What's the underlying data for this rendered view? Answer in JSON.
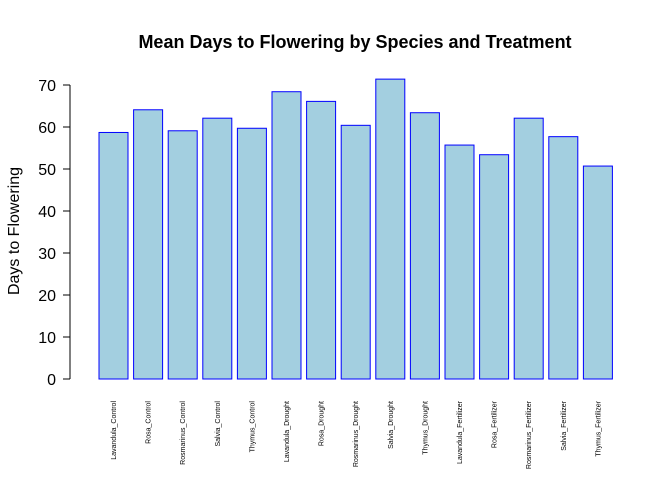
{
  "chart_data": {
    "type": "bar",
    "title": "Mean Days to Flowering by Species and Treatment",
    "xlabel": "",
    "ylabel": "Days to Flowering",
    "ylim": [
      0,
      70
    ],
    "yticks": [
      0,
      10,
      20,
      30,
      40,
      50,
      60,
      70
    ],
    "grid": false,
    "bar_fill": "#a3cfe0",
    "bar_border": "#0000ff",
    "categories": [
      "Lavandula_Control",
      "Rosa_Control",
      "Rosmarinus_Control",
      "Salvia_Control",
      "Thymus_Control",
      "Lavandula_Drought",
      "Rosa_Drought",
      "Rosmarinus_Drought",
      "Salvia_Drought",
      "Thymus_Drought",
      "Lavandula_Fertilizer",
      "Rosa_Fertilizer",
      "Rosmarinus_Fertilizer",
      "Salvia_Fertilizer",
      "Thymus_Fertilizer"
    ],
    "values": [
      58.7,
      64.1,
      59.1,
      62.1,
      59.7,
      68.4,
      66.1,
      60.4,
      71.4,
      63.4,
      55.7,
      53.4,
      62.1,
      57.7,
      50.7
    ]
  }
}
